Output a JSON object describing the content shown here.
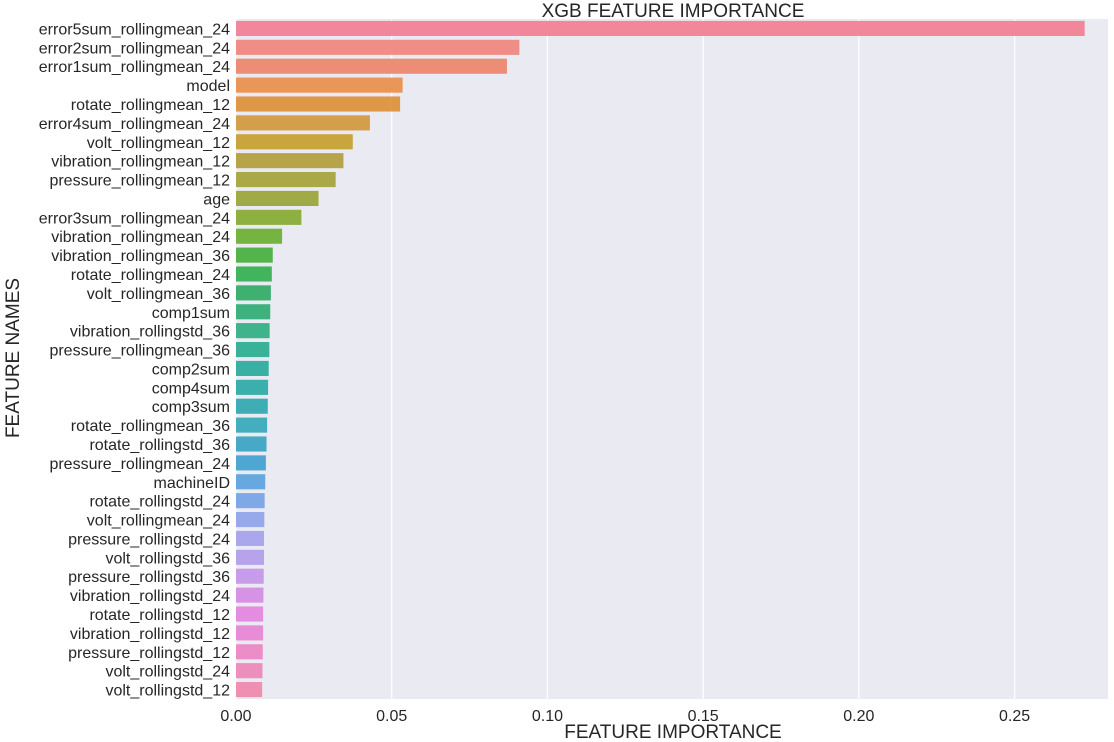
{
  "chart_data": {
    "type": "bar",
    "orientation": "horizontal",
    "title": "XGB FEATURE IMPORTANCE",
    "xlabel": "FEATURE IMPORTANCE",
    "ylabel": "FEATURE NAMES",
    "xlim": [
      0.0,
      0.28
    ],
    "xticks": [
      0.0,
      0.05,
      0.1,
      0.15,
      0.2,
      0.25
    ],
    "xtick_labels": [
      "0.00",
      "0.05",
      "0.10",
      "0.15",
      "0.20",
      "0.25"
    ],
    "grid": true,
    "background_color": "#eaeaf2",
    "grid_color": "#ffffff",
    "categories": [
      "error5sum_rollingmean_24",
      "error2sum_rollingmean_24",
      "error1sum_rollingmean_24",
      "model",
      "rotate_rollingmean_12",
      "error4sum_rollingmean_24",
      "volt_rollingmean_12",
      "vibration_rollingmean_12",
      "pressure_rollingmean_12",
      "age",
      "error3sum_rollingmean_24",
      "vibration_rollingmean_24",
      "vibration_rollingmean_36",
      "rotate_rollingmean_24",
      "volt_rollingmean_36",
      "comp1sum",
      "vibration_rollingstd_36",
      "pressure_rollingmean_36",
      "comp2sum",
      "comp4sum",
      "comp3sum",
      "rotate_rollingmean_36",
      "rotate_rollingstd_36",
      "pressure_rollingmean_24",
      "machineID",
      "rotate_rollingstd_24",
      "volt_rollingmean_24",
      "pressure_rollingstd_24",
      "volt_rollingstd_36",
      "pressure_rollingstd_36",
      "vibration_rollingstd_24",
      "rotate_rollingstd_12",
      "vibration_rollingstd_12",
      "pressure_rollingstd_12",
      "volt_rollingstd_24",
      "volt_rollingstd_12"
    ],
    "values": [
      0.2725,
      0.091,
      0.087,
      0.0535,
      0.0527,
      0.043,
      0.0375,
      0.0345,
      0.032,
      0.0265,
      0.021,
      0.0148,
      0.0118,
      0.0115,
      0.0112,
      0.011,
      0.0108,
      0.0107,
      0.0105,
      0.0103,
      0.0102,
      0.01,
      0.0098,
      0.0096,
      0.0094,
      0.0092,
      0.0091,
      0.009,
      0.009,
      0.0089,
      0.0088,
      0.0087,
      0.0087,
      0.0086,
      0.0085,
      0.0084
    ],
    "colors": [
      "#f0879a",
      "#ef8e87",
      "#ed8d76",
      "#e99658",
      "#de9848",
      "#d39f4a",
      "#c9a53e",
      "#b7a448",
      "#aaa847",
      "#a0ab46",
      "#8eb041",
      "#76b441",
      "#52b44b",
      "#43b45e",
      "#3eb06f",
      "#3eb17e",
      "#3fb38b",
      "#3ab199",
      "#3ab0a4",
      "#3bafab",
      "#3eaeb4",
      "#44adbe",
      "#48a9c7",
      "#50a6d3",
      "#67a8e0",
      "#7fa8e7",
      "#97a8eb",
      "#aba7ed",
      "#b7a3ec",
      "#c79ceb",
      "#d693e6",
      "#e38ce2",
      "#e98cd8",
      "#ec8dc8",
      "#ee8ebd",
      "#ef8fb1"
    ]
  }
}
